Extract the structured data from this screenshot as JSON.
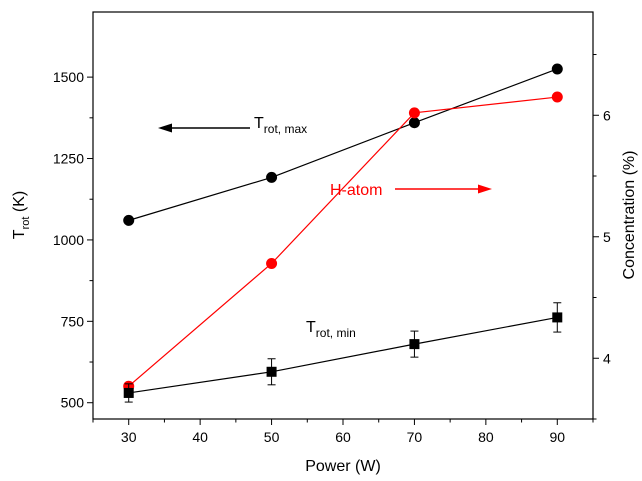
{
  "chart_data": {
    "type": "line",
    "x_axis": {
      "label": "Power (W)",
      "ticks": [
        30,
        40,
        50,
        60,
        70,
        80,
        90
      ],
      "range": [
        25,
        95
      ]
    },
    "y_left": {
      "label_main": "T",
      "label_sub": "rot",
      "label_unit": " (K)",
      "ticks": [
        500,
        750,
        1000,
        1250,
        1500
      ],
      "range": [
        450,
        1700
      ]
    },
    "y_right": {
      "label": "Concentration (%)",
      "ticks": [
        4,
        5,
        6
      ],
      "range": [
        3.5,
        6.85
      ]
    },
    "series": [
      {
        "key": "t-rot-max",
        "axis": "left",
        "color": "#000000",
        "marker": "circle",
        "x": [
          30,
          50,
          70,
          90
        ],
        "y": [
          1060,
          1192,
          1360,
          1525
        ]
      },
      {
        "key": "h-atom",
        "axis": "right",
        "color": "#ff0000",
        "marker": "circle",
        "x": [
          30,
          50,
          70,
          90
        ],
        "y": [
          3.77,
          4.78,
          6.02,
          6.15
        ]
      },
      {
        "key": "t-rot-min",
        "axis": "left",
        "color": "#000000",
        "marker": "square",
        "x": [
          30,
          50,
          70,
          90
        ],
        "y": [
          530,
          595,
          680,
          762
        ],
        "error": [
          28,
          40,
          40,
          45
        ]
      }
    ],
    "annotations": {
      "t_rot_max": {
        "main": "T",
        "sub": "rot, max"
      },
      "t_rot_min": {
        "main": "T",
        "sub": "rot, min"
      },
      "h_atom": {
        "text": "H-atom",
        "color": "#ff0000"
      }
    }
  }
}
